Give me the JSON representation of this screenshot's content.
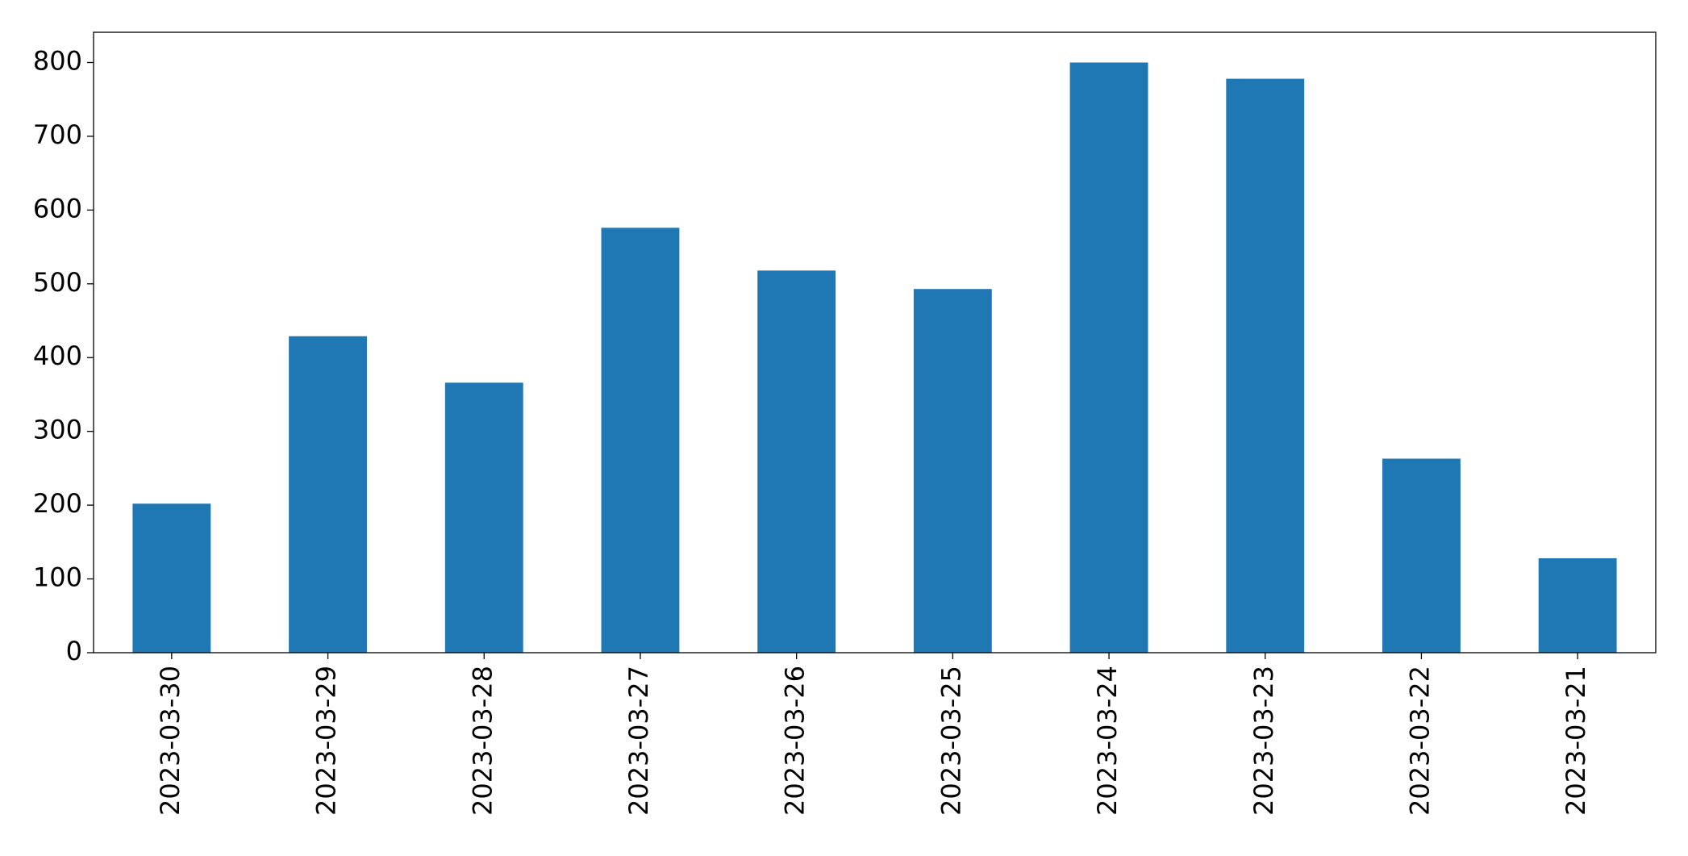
{
  "chart_data": {
    "type": "bar",
    "categories": [
      "2023-03-30",
      "2023-03-29",
      "2023-03-28",
      "2023-03-27",
      "2023-03-26",
      "2023-03-25",
      "2023-03-24",
      "2023-03-23",
      "2023-03-22",
      "2023-03-21"
    ],
    "values": [
      202,
      429,
      366,
      576,
      518,
      493,
      800,
      778,
      263,
      128
    ],
    "color": "#1f77b4",
    "ylim": [
      0,
      841
    ],
    "yticks": [
      0,
      100,
      200,
      300,
      400,
      500,
      600,
      700,
      800
    ],
    "grid": false
  }
}
